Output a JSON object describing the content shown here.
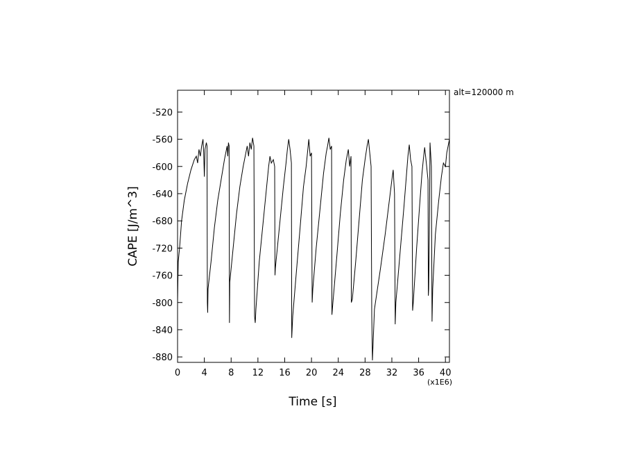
{
  "chart_data": {
    "type": "line",
    "x_label": "Time [s]",
    "x_multiplier": "(x1E6)",
    "y_label": "CAPE [J/m^3]",
    "annotation": "alt=120000 m",
    "xlim": [
      0,
      40.6
    ],
    "ylim": [
      -888,
      -488
    ],
    "xticks": [
      0,
      4,
      8,
      12,
      16,
      20,
      24,
      28,
      32,
      36,
      40
    ],
    "yticks": [
      -880,
      -840,
      -800,
      -760,
      -720,
      -680,
      -640,
      -600,
      -560,
      -520
    ],
    "series": [
      {
        "color": "#000000",
        "x": [
          0,
          0.1,
          0.3,
          0.6,
          1,
          1.5,
          2,
          2.5,
          2.8,
          3,
          3.2,
          3.4,
          3.6,
          3.8,
          3.9,
          4.0,
          4.1,
          4.3,
          4.4,
          4.45,
          4.5,
          4.55,
          5,
          5.5,
          6,
          6.5,
          7,
          7.2,
          7.4,
          7.5,
          7.6,
          7.7,
          7.75,
          7.8,
          8.3,
          8.8,
          9.3,
          9.8,
          10.1,
          10.4,
          10.6,
          10.8,
          11.0,
          11.2,
          11.4,
          11.5,
          11.6,
          11.7,
          12.2,
          12.7,
          13.2,
          13.6,
          13.8,
          14.0,
          14.3,
          14.5,
          14.55,
          14.6,
          15.2,
          15.8,
          16.2,
          16.4,
          16.6,
          16.8,
          17.0,
          17.05,
          17.2,
          17.7,
          18.3,
          18.8,
          19.2,
          19.4,
          19.6,
          19.8,
          20.0,
          20.1,
          20.2,
          20.7,
          21.3,
          21.8,
          22.2,
          22.4,
          22.6,
          22.8,
          23.0,
          23.05,
          23.2,
          23.8,
          24.3,
          24.8,
          25.2,
          25.5,
          25.7,
          25.9,
          25.95,
          26.1,
          26.6,
          27.1,
          27.6,
          28.0,
          28.3,
          28.5,
          28.7,
          28.9,
          29.0,
          29.1,
          29.2,
          29.4,
          30.3,
          31.0,
          31.5,
          32.0,
          32.2,
          32.4,
          32.5,
          32.6,
          33.2,
          33.8,
          34.2,
          34.4,
          34.6,
          34.8,
          35.0,
          35.1,
          35.2,
          35.7,
          36.2,
          36.5,
          36.7,
          36.9,
          37.2,
          37.4,
          37.45,
          37.5,
          37.6,
          37.7,
          37.9,
          38.0,
          38.1,
          38.5,
          39.0,
          39.4,
          39.7,
          40.0,
          40.2,
          40.6
        ],
        "values": [
          -800,
          -740,
          -720,
          -680,
          -650,
          -625,
          -605,
          -590,
          -585,
          -595,
          -575,
          -585,
          -570,
          -560,
          -580,
          -615,
          -575,
          -565,
          -570,
          -800,
          -815,
          -780,
          -740,
          -690,
          -650,
          -620,
          -590,
          -580,
          -570,
          -585,
          -565,
          -570,
          -830,
          -770,
          -720,
          -670,
          -630,
          -600,
          -585,
          -570,
          -585,
          -565,
          -575,
          -558,
          -570,
          -820,
          -830,
          -810,
          -740,
          -690,
          -640,
          -600,
          -585,
          -595,
          -590,
          -600,
          -760,
          -750,
          -690,
          -630,
          -595,
          -575,
          -560,
          -575,
          -595,
          -852,
          -820,
          -760,
          -690,
          -630,
          -600,
          -580,
          -560,
          -585,
          -580,
          -800,
          -780,
          -720,
          -660,
          -610,
          -580,
          -570,
          -558,
          -575,
          -570,
          -818,
          -800,
          -730,
          -670,
          -620,
          -590,
          -575,
          -600,
          -585,
          -800,
          -795,
          -740,
          -680,
          -620,
          -590,
          -570,
          -560,
          -580,
          -600,
          -820,
          -885,
          -860,
          -810,
          -750,
          -700,
          -660,
          -620,
          -605,
          -640,
          -832,
          -800,
          -730,
          -660,
          -610,
          -585,
          -568,
          -590,
          -600,
          -812,
          -800,
          -720,
          -650,
          -610,
          -590,
          -572,
          -600,
          -620,
          -790,
          -780,
          -700,
          -565,
          -600,
          -828,
          -780,
          -700,
          -650,
          -615,
          -595,
          -600,
          -580,
          -560
        ]
      }
    ]
  }
}
